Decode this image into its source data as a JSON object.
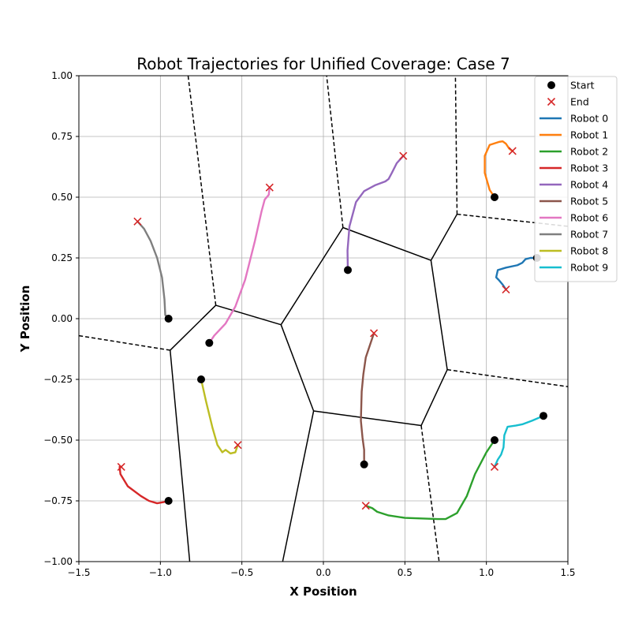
{
  "chart_data": {
    "type": "line",
    "title": "Robot Trajectories for Unified Coverage: Case 7",
    "xlabel": "X Position",
    "ylabel": "Y Position",
    "xlim": [
      -1.5,
      1.5
    ],
    "ylim": [
      -1.0,
      1.0
    ],
    "xticks": [
      -1.5,
      -1.0,
      -0.5,
      0.0,
      0.5,
      1.0,
      1.5
    ],
    "xtick_labels": [
      "−1.5",
      "−1.0",
      "−0.5",
      "0.0",
      "0.5",
      "1.0",
      "1.5"
    ],
    "yticks": [
      -1.0,
      -0.75,
      -0.5,
      -0.25,
      0.0,
      0.25,
      0.5,
      0.75,
      1.0
    ],
    "ytick_labels": [
      "−1.00",
      "−0.75",
      "−0.50",
      "−0.25",
      "0.00",
      "0.25",
      "0.50",
      "0.75",
      "1.00"
    ],
    "grid": true,
    "legend": {
      "placement": "top-right",
      "entries": [
        "Start",
        "End",
        "Robot 0",
        "Robot 1",
        "Robot 2",
        "Robot 3",
        "Robot 4",
        "Robot 5",
        "Robot 6",
        "Robot 7",
        "Robot 8",
        "Robot 9"
      ]
    },
    "marker_colors": {
      "start": "#000000",
      "end": "#d62728"
    },
    "series": [
      {
        "name": "Robot 0",
        "color": "#1f77b4",
        "points": [
          [
            1.31,
            0.25
          ],
          [
            1.27,
            0.25
          ],
          [
            1.24,
            0.245
          ],
          [
            1.22,
            0.23
          ],
          [
            1.19,
            0.22
          ],
          [
            1.12,
            0.21
          ],
          [
            1.07,
            0.2
          ],
          [
            1.06,
            0.17
          ],
          [
            1.075,
            0.16
          ],
          [
            1.1,
            0.14
          ],
          [
            1.12,
            0.12
          ]
        ]
      },
      {
        "name": "Robot 1",
        "color": "#ff7f0e",
        "points": [
          [
            1.05,
            0.5
          ],
          [
            1.02,
            0.53
          ],
          [
            0.99,
            0.6
          ],
          [
            0.99,
            0.67
          ],
          [
            1.02,
            0.715
          ],
          [
            1.08,
            0.728
          ],
          [
            1.1,
            0.73
          ],
          [
            1.12,
            0.72
          ],
          [
            1.14,
            0.7
          ],
          [
            1.16,
            0.69
          ]
        ]
      },
      {
        "name": "Robot 2",
        "color": "#2ca02c",
        "points": [
          [
            1.05,
            -0.5
          ],
          [
            1.0,
            -0.55
          ],
          [
            0.93,
            -0.64
          ],
          [
            0.88,
            -0.73
          ],
          [
            0.82,
            -0.8
          ],
          [
            0.75,
            -0.825
          ],
          [
            0.7,
            -0.825
          ],
          [
            0.5,
            -0.82
          ],
          [
            0.4,
            -0.81
          ],
          [
            0.33,
            -0.795
          ],
          [
            0.3,
            -0.78
          ],
          [
            0.26,
            -0.77
          ]
        ]
      },
      {
        "name": "Robot 3",
        "color": "#d62728",
        "points": [
          [
            -0.95,
            -0.75
          ],
          [
            -0.98,
            -0.755
          ],
          [
            -1.02,
            -0.76
          ],
          [
            -1.07,
            -0.75
          ],
          [
            -1.12,
            -0.73
          ],
          [
            -1.2,
            -0.69
          ],
          [
            -1.245,
            -0.64
          ],
          [
            -1.25,
            -0.61
          ],
          [
            -1.24,
            -0.61
          ]
        ]
      },
      {
        "name": "Robot 4",
        "color": "#9467bd",
        "points": [
          [
            0.15,
            0.2
          ],
          [
            0.148,
            0.28
          ],
          [
            0.16,
            0.38
          ],
          [
            0.2,
            0.48
          ],
          [
            0.25,
            0.525
          ],
          [
            0.32,
            0.55
          ],
          [
            0.38,
            0.565
          ],
          [
            0.4,
            0.575
          ],
          [
            0.42,
            0.6
          ],
          [
            0.45,
            0.64
          ],
          [
            0.49,
            0.67
          ]
        ]
      },
      {
        "name": "Robot 5",
        "color": "#8c564b",
        "points": [
          [
            0.25,
            -0.6
          ],
          [
            0.25,
            -0.54
          ],
          [
            0.24,
            -0.49
          ],
          [
            0.23,
            -0.42
          ],
          [
            0.235,
            -0.3
          ],
          [
            0.245,
            -0.23
          ],
          [
            0.26,
            -0.16
          ],
          [
            0.29,
            -0.1
          ],
          [
            0.31,
            -0.06
          ]
        ]
      },
      {
        "name": "Robot 6",
        "color": "#e377c2",
        "points": [
          [
            -0.7,
            -0.1
          ],
          [
            -0.67,
            -0.07
          ],
          [
            -0.6,
            -0.02
          ],
          [
            -0.54,
            0.05
          ],
          [
            -0.48,
            0.16
          ],
          [
            -0.42,
            0.32
          ],
          [
            -0.38,
            0.44
          ],
          [
            -0.36,
            0.49
          ],
          [
            -0.335,
            0.51
          ],
          [
            -0.33,
            0.54
          ]
        ]
      },
      {
        "name": "Robot 7",
        "color": "#7f7f7f",
        "points": [
          [
            -0.95,
            0.0
          ],
          [
            -0.97,
            0.015
          ],
          [
            -0.975,
            0.08
          ],
          [
            -0.99,
            0.17
          ],
          [
            -1.02,
            0.25
          ],
          [
            -1.06,
            0.32
          ],
          [
            -1.1,
            0.37
          ],
          [
            -1.14,
            0.4
          ]
        ]
      },
      {
        "name": "Robot 8",
        "color": "#bcbd22",
        "points": [
          [
            -0.75,
            -0.25
          ],
          [
            -0.72,
            -0.34
          ],
          [
            -0.68,
            -0.45
          ],
          [
            -0.65,
            -0.52
          ],
          [
            -0.62,
            -0.55
          ],
          [
            -0.6,
            -0.54
          ],
          [
            -0.57,
            -0.555
          ],
          [
            -0.54,
            -0.55
          ],
          [
            -0.525,
            -0.52
          ]
        ]
      },
      {
        "name": "Robot 9",
        "color": "#17becf",
        "points": [
          [
            1.35,
            -0.4
          ],
          [
            1.28,
            -0.42
          ],
          [
            1.22,
            -0.435
          ],
          [
            1.18,
            -0.44
          ],
          [
            1.13,
            -0.445
          ],
          [
            1.11,
            -0.48
          ],
          [
            1.105,
            -0.53
          ],
          [
            1.09,
            -0.56
          ],
          [
            1.07,
            -0.58
          ],
          [
            1.05,
            -0.61
          ]
        ]
      }
    ],
    "voronoi_solid_edges": [
      [
        [
          -0.94,
          -0.13
        ],
        [
          -0.66,
          0.055
        ]
      ],
      [
        [
          -0.66,
          0.055
        ],
        [
          -0.26,
          -0.025
        ]
      ],
      [
        [
          -0.26,
          -0.025
        ],
        [
          0.12,
          0.375
        ]
      ],
      [
        [
          0.12,
          0.375
        ],
        [
          0.66,
          0.24
        ]
      ],
      [
        [
          0.66,
          0.24
        ],
        [
          0.76,
          -0.21
        ]
      ],
      [
        [
          0.76,
          -0.21
        ],
        [
          0.6,
          -0.44
        ]
      ],
      [
        [
          0.6,
          -0.44
        ],
        [
          -0.06,
          -0.38
        ]
      ],
      [
        [
          -0.06,
          -0.38
        ],
        [
          -0.26,
          -0.025
        ]
      ],
      [
        [
          -0.94,
          -0.13
        ],
        [
          -0.82,
          -1.0
        ]
      ],
      [
        [
          -0.06,
          -0.38
        ],
        [
          -0.25,
          -1.0
        ]
      ],
      [
        [
          0.66,
          0.24
        ],
        [
          0.82,
          0.43
        ]
      ]
    ],
    "voronoi_dashed_edges": [
      [
        [
          -0.94,
          -0.13
        ],
        [
          -1.5,
          -0.07
        ]
      ],
      [
        [
          -0.66,
          0.055
        ],
        [
          -0.83,
          1.0
        ]
      ],
      [
        [
          0.12,
          0.375
        ],
        [
          0.02,
          1.0
        ]
      ],
      [
        [
          0.82,
          0.43
        ],
        [
          0.81,
          1.0
        ]
      ],
      [
        [
          0.82,
          0.43
        ],
        [
          1.5,
          0.38
        ]
      ],
      [
        [
          0.76,
          -0.21
        ],
        [
          1.5,
          -0.28
        ]
      ],
      [
        [
          0.6,
          -0.44
        ],
        [
          0.71,
          -1.0
        ]
      ]
    ]
  }
}
